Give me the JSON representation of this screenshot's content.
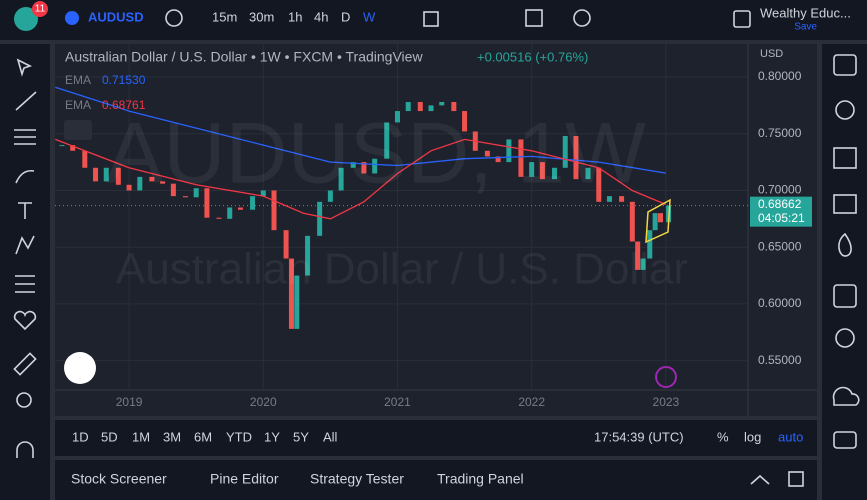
{
  "toolbar": {
    "badge": "11",
    "symbol": "AUDUSD",
    "intervals": [
      "15m",
      "30m",
      "1h",
      "4h",
      "D",
      "W"
    ],
    "user": "Wealthy Educ...",
    "save": "Save"
  },
  "legend": {
    "header": "Australian Dollar / U.S. Dollar • 1W • FXCM • TradingView",
    "change": "+0.00516 (+0.76%)",
    "currency": "USD",
    "indicators": [
      {
        "name": "EMA",
        "value": "0.71530"
      },
      {
        "name": "EMA",
        "value": "0.68761"
      }
    ]
  },
  "watermark": {
    "symbol": "AUDUSD, 1W",
    "description": "Australian Dollar / U.S. Dollar"
  },
  "chart_data": {
    "type": "candlestick",
    "up_color": "#26a69a",
    "down_color": "#ef5350",
    "x": [
      2018.5,
      2018.58,
      2018.67,
      2018.75,
      2018.83,
      2018.92,
      2019.0,
      2019.08,
      2019.17,
      2019.25,
      2019.33,
      2019.42,
      2019.5,
      2019.58,
      2019.67,
      2019.75,
      2019.83,
      2019.92,
      2020.0,
      2020.08,
      2020.17,
      2020.21,
      2020.25,
      2020.33,
      2020.42,
      2020.5,
      2020.58,
      2020.67,
      2020.75,
      2020.83,
      2020.92,
      2021.0,
      2021.08,
      2021.17,
      2021.25,
      2021.33,
      2021.42,
      2021.5,
      2021.58,
      2021.67,
      2021.75,
      2021.83,
      2021.92,
      2022.0,
      2022.08,
      2022.17,
      2022.25,
      2022.33,
      2022.42,
      2022.5,
      2022.58,
      2022.67,
      2022.75,
      2022.79,
      2022.83,
      2022.88,
      2022.92,
      2022.96,
      2023.02
    ],
    "values": [
      0.74,
      0.735,
      0.72,
      0.708,
      0.72,
      0.705,
      0.7,
      0.712,
      0.708,
      0.706,
      0.695,
      0.694,
      0.702,
      0.676,
      0.675,
      0.685,
      0.683,
      0.695,
      0.7,
      0.665,
      0.64,
      0.578,
      0.625,
      0.66,
      0.69,
      0.7,
      0.72,
      0.725,
      0.715,
      0.728,
      0.76,
      0.77,
      0.778,
      0.77,
      0.775,
      0.778,
      0.77,
      0.752,
      0.735,
      0.73,
      0.725,
      0.745,
      0.712,
      0.725,
      0.71,
      0.72,
      0.748,
      0.71,
      0.72,
      0.69,
      0.695,
      0.69,
      0.655,
      0.63,
      0.64,
      0.665,
      0.68,
      0.672,
      0.68662
    ],
    "series": [
      {
        "name": "EMA",
        "color": "#2962ff",
        "x": [
          2018.45,
          2019.0,
          2019.5,
          2020.0,
          2020.5,
          2021.0,
          2021.5,
          2022.0,
          2022.5,
          2023.0
        ],
        "values": [
          0.791,
          0.77,
          0.755,
          0.74,
          0.725,
          0.722,
          0.728,
          0.73,
          0.725,
          0.7153
        ]
      },
      {
        "name": "EMA",
        "color": "#f23645",
        "x": [
          2018.45,
          2019.0,
          2019.5,
          2020.0,
          2020.3,
          2020.5,
          2020.75,
          2021.0,
          2021.25,
          2021.5,
          2022.0,
          2022.5,
          2022.75,
          2023.0
        ],
        "values": [
          0.745,
          0.72,
          0.705,
          0.695,
          0.68,
          0.675,
          0.69,
          0.715,
          0.735,
          0.745,
          0.735,
          0.72,
          0.7,
          0.6876
        ]
      }
    ],
    "xlim": [
      2018.448,
      2023.612
    ],
    "xticks": [
      2019,
      2020,
      2021,
      2022,
      2023
    ],
    "ylim": [
      0.525,
      0.83
    ],
    "yticks": [
      {
        "value": 0.55,
        "label": "0.55000"
      },
      {
        "value": 0.6,
        "label": "0.60000"
      },
      {
        "value": 0.65,
        "label": "0.65000"
      },
      {
        "value": 0.7,
        "label": "0.70000"
      },
      {
        "value": 0.75,
        "label": "0.75000"
      },
      {
        "value": 0.8,
        "label": "0.80000"
      }
    ],
    "last_price": {
      "value": 0.68662,
      "label": "0.68662",
      "countdown": "04:05:21"
    }
  },
  "range_bar": {
    "ranges": [
      "1D",
      "5D",
      "1M",
      "3M",
      "6M",
      "YTD",
      "1Y",
      "5Y",
      "All"
    ],
    "clock": "17:54:39 (UTC)",
    "percent": "%",
    "log": "log",
    "auto": "auto"
  },
  "bottom_panel": {
    "tabs": [
      "Stock Screener",
      "Pine Editor",
      "Strategy Tester",
      "Trading Panel"
    ]
  }
}
